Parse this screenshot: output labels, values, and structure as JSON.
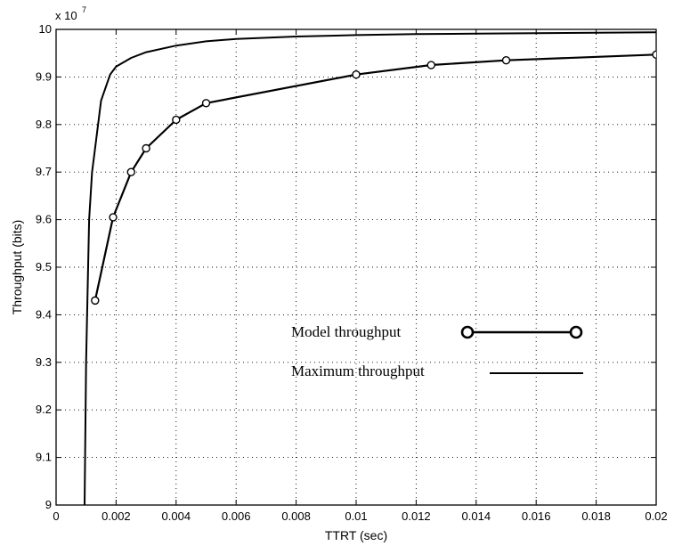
{
  "chart_data": {
    "type": "line",
    "xlabel": "TTRT (sec)",
    "ylabel": "Throughput (bits)",
    "y_multiplier": {
      "base": "x 10",
      "exponent": "7"
    },
    "xlim": [
      0,
      0.02
    ],
    "ylim": [
      9.0,
      10.0
    ],
    "x_ticks": [
      0,
      0.002,
      0.004,
      0.006,
      0.008,
      0.01,
      0.012,
      0.014,
      0.016,
      0.018,
      0.02
    ],
    "x_tick_labels": [
      "0",
      "0.002",
      "0.004",
      "0.006",
      "0.008",
      "0.01",
      "0.012",
      "0.014",
      "0.016",
      "0.018",
      "0.02"
    ],
    "y_ticks": [
      9.0,
      9.1,
      9.2,
      9.3,
      9.4,
      9.5,
      9.6,
      9.7,
      9.8,
      9.9,
      10.0
    ],
    "y_tick_labels": [
      "9",
      "9.1",
      "9.2",
      "9.3",
      "9.4",
      "9.5",
      "9.6",
      "9.7",
      "9.8",
      "9.9",
      "10"
    ],
    "grid": true,
    "legend_position": "center-right",
    "series": [
      {
        "name": "Model throughput",
        "marker": "circle",
        "points": [
          [
            0.0013,
            9.43
          ],
          [
            0.0019,
            9.605
          ],
          [
            0.0025,
            9.7
          ],
          [
            0.003,
            9.75
          ],
          [
            0.004,
            9.81
          ],
          [
            0.005,
            9.845
          ],
          [
            0.01,
            9.905
          ],
          [
            0.0125,
            9.925
          ],
          [
            0.015,
            9.935
          ],
          [
            0.02,
            9.947
          ]
        ]
      },
      {
        "name": "Maximum throughput",
        "marker": "none",
        "points": [
          [
            0.00095,
            9.0
          ],
          [
            0.001,
            9.3
          ],
          [
            0.0011,
            9.6
          ],
          [
            0.0012,
            9.7
          ],
          [
            0.0013,
            9.75
          ],
          [
            0.0015,
            9.85
          ],
          [
            0.0018,
            9.905
          ],
          [
            0.002,
            9.922
          ],
          [
            0.0025,
            9.94
          ],
          [
            0.003,
            9.952
          ],
          [
            0.004,
            9.966
          ],
          [
            0.005,
            9.975
          ],
          [
            0.006,
            9.98
          ],
          [
            0.008,
            9.985
          ],
          [
            0.01,
            9.988
          ],
          [
            0.012,
            9.99
          ],
          [
            0.014,
            9.991
          ],
          [
            0.016,
            9.992
          ],
          [
            0.018,
            9.993
          ],
          [
            0.02,
            9.994
          ]
        ]
      }
    ]
  }
}
